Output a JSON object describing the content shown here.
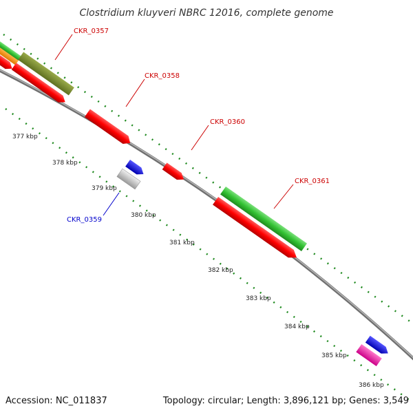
{
  "title": "Clostridium kluyveri NBRC 12016, complete genome",
  "footer": {
    "accession": "Accession: NC_011837",
    "summary": "Topology: circular; Length: 3,896,121 bp; Genes: 3,549"
  },
  "colors": {
    "backbone": "#8c8c8c",
    "dots": "#1f8a1f",
    "label_red": "#cc0000",
    "label_blue": "#0000cc"
  },
  "ticks": [
    {
      "label": "377 kbp"
    },
    {
      "label": "378 kbp"
    },
    {
      "label": "379 kbp"
    },
    {
      "label": "380 kbp"
    },
    {
      "label": "381 kbp"
    },
    {
      "label": "382 kbp"
    },
    {
      "label": "383 kbp"
    },
    {
      "label": "384 kbp"
    },
    {
      "label": "385 kbp"
    },
    {
      "label": "386 kbp"
    }
  ],
  "gene_labels": [
    {
      "id": "CKR_0357",
      "text": "CKR_0357",
      "color": "#cc0000"
    },
    {
      "id": "CKR_0358",
      "text": "CKR_0358",
      "color": "#cc0000"
    },
    {
      "id": "CKR_0360",
      "text": "CKR_0360",
      "color": "#cc0000"
    },
    {
      "id": "CKR_0361",
      "text": "CKR_0361",
      "color": "#cc0000"
    },
    {
      "id": "CKR_0359",
      "text": "CKR_0359",
      "color": "#0000cc"
    }
  ]
}
